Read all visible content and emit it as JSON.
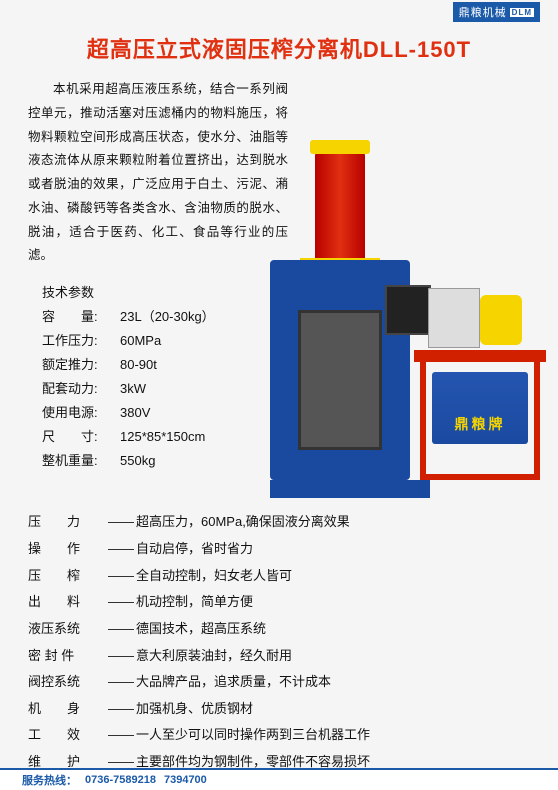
{
  "brand": {
    "name": "鼎粮机械",
    "logo": "DLM"
  },
  "title": "超高压立式液固压榨分离机DLL-150T",
  "description": "本机采用超高压液压系统，结合一系列阀控单元，推动活塞对压滤桶内的物料施压，将物料颗粒空间形成高压状态，使水分、油脂等液态流体从原来颗粒附着位置挤出，达到脱水或者脱油的效果，广泛应用于白土、污泥、潲水油、磷酸钙等各类含水、含油物质的脱水、脱油，适合于医药、化工、食品等行业的压滤。",
  "spec_title": "技术参数",
  "specs": [
    {
      "label": "容　　量:",
      "value": "23L（20-30kg）"
    },
    {
      "label": "工作压力:",
      "value": "60MPa"
    },
    {
      "label": "额定推力:",
      "value": "80-90t"
    },
    {
      "label": "配套动力:",
      "value": "3kW"
    },
    {
      "label": "使用电源:",
      "value": "380V"
    },
    {
      "label": "尺　　寸:",
      "value": "125*85*150cm"
    },
    {
      "label": "整机重量:",
      "value": "550kg"
    }
  ],
  "pump_label": "鼎粮牌",
  "features": [
    {
      "label": "压　　力",
      "value": "超高压力，60MPa,确保固液分离效果"
    },
    {
      "label": "操　　作",
      "value": "自动启停，省时省力"
    },
    {
      "label": "压　　榨",
      "value": "全自动控制，妇女老人皆可"
    },
    {
      "label": "出　　料",
      "value": "机动控制，简单方便"
    },
    {
      "label": "液压系统",
      "value": "德国技术，超高压系统"
    },
    {
      "label": "密 封 件",
      "value": "意大利原装油封，经久耐用"
    },
    {
      "label": "阀控系统",
      "value": "大品牌产品，追求质量，不计成本"
    },
    {
      "label": "机　　身",
      "value": "加强机身、优质钢材"
    },
    {
      "label": "工　　效",
      "value": "一人至少可以同时操作两到三台机器工作"
    },
    {
      "label": "维　　护",
      "value": "主要部件均为钢制件，零部件不容易损坏"
    }
  ],
  "footer": {
    "label": "服务热线：",
    "phone1": "0736-7589218",
    "phone2": "7394700"
  },
  "colors": {
    "title": "#e03010",
    "brand_bg": "#1b5aa8",
    "machine_blue": "#1a4aa0",
    "machine_red": "#d02000",
    "machine_yellow": "#f5d400"
  }
}
